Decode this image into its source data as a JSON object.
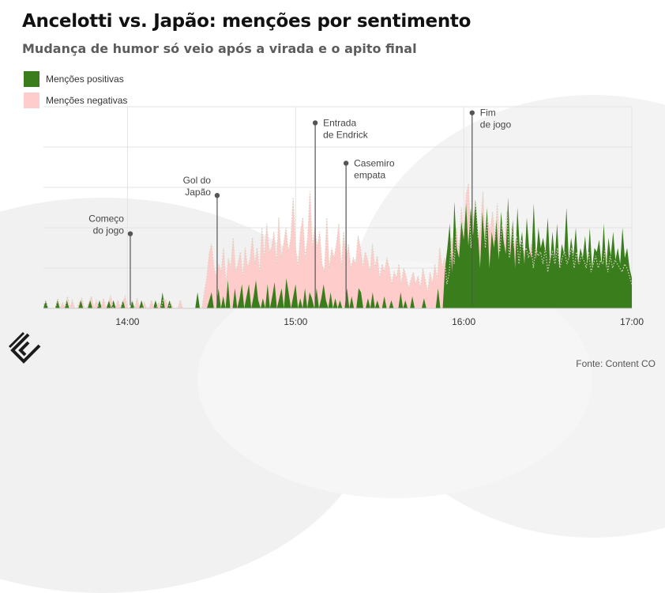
{
  "header": {
    "title": "Ancelotti vs. Japão: menções por sentimento",
    "subtitle": "Mudança de humor só veio após a virada e o apito final"
  },
  "colors": {
    "positive": "#3a7d1d",
    "negative": "#ffcccc",
    "dotted_line": "#d9d2c0",
    "grid": "#e3e3e3",
    "annotation": "#555555"
  },
  "source": "Fonte: Content CO",
  "logo_icon": "content-co-logo-icon",
  "chart_data": {
    "type": "area",
    "x_unit": "time",
    "x_start": "13:30",
    "x_end": "17:00",
    "x_ticks": [
      "14:00",
      "15:00",
      "16:00",
      "17:00"
    ],
    "ylim": [
      0,
      100
    ],
    "grid": "horizontal",
    "legend_position": "top-left",
    "series": [
      {
        "name": "Menções positivas",
        "key": "positive",
        "values": [
          0,
          4,
          0,
          0,
          0,
          0,
          4,
          0,
          0,
          0,
          4,
          0,
          0,
          0,
          0,
          0,
          4,
          0,
          0,
          0,
          4,
          0,
          0,
          0,
          4,
          0,
          0,
          0,
          4,
          0,
          4,
          0,
          0,
          0,
          4,
          0,
          0,
          0,
          4,
          0,
          0,
          0,
          4,
          0,
          0,
          0,
          0,
          0,
          4,
          0,
          0,
          8,
          0,
          0,
          4,
          0,
          0,
          0,
          0,
          0,
          0,
          0,
          0,
          0,
          0,
          0,
          8,
          0,
          0,
          0,
          0,
          4,
          8,
          0,
          0,
          10,
          0,
          6,
          0,
          14,
          0,
          0,
          10,
          0,
          5,
          12,
          0,
          6,
          12,
          0,
          6,
          14,
          4,
          0,
          5,
          0,
          12,
          0,
          6,
          13,
          0,
          5,
          10,
          0,
          15,
          8,
          0,
          6,
          12,
          0,
          5,
          0,
          10,
          0,
          8,
          5,
          0,
          10,
          0,
          5,
          12,
          4,
          0,
          8,
          0,
          5,
          0,
          4,
          0,
          0,
          10,
          0,
          6,
          0,
          0,
          10,
          8,
          0,
          0,
          5,
          0,
          8,
          0,
          4,
          0,
          0,
          6,
          0,
          0,
          4,
          0,
          0,
          0,
          8,
          0,
          4,
          0,
          0,
          6,
          0,
          0,
          0,
          0,
          5,
          0,
          0,
          0,
          0,
          0,
          10,
          0,
          0,
          20,
          30,
          42,
          18,
          53,
          30,
          25,
          43,
          34,
          52,
          31,
          50,
          36,
          54,
          40,
          20,
          48,
          33,
          50,
          20,
          38,
          30,
          44,
          24,
          48,
          34,
          27,
          55,
          26,
          44,
          20,
          50,
          30,
          38,
          22,
          45,
          30,
          25,
          52,
          24,
          40,
          30,
          35,
          28,
          45,
          22,
          38,
          25,
          42,
          20,
          32,
          27,
          50,
          24,
          35,
          26,
          40,
          22,
          30,
          25,
          36,
          22,
          40,
          20,
          30,
          28,
          34,
          22,
          42,
          20,
          35,
          26,
          38,
          24,
          30,
          22,
          40,
          25,
          30,
          20,
          15
        ]
      },
      {
        "name": "Menções negativas",
        "key": "negative",
        "values": [
          2,
          3,
          0,
          0,
          0,
          0,
          5,
          0,
          3,
          0,
          6,
          0,
          4,
          0,
          0,
          3,
          5,
          0,
          0,
          3,
          6,
          0,
          4,
          0,
          0,
          5,
          0,
          3,
          6,
          0,
          0,
          4,
          0,
          3,
          6,
          0,
          0,
          4,
          0,
          5,
          0,
          0,
          3,
          0,
          0,
          4,
          0,
          0,
          3,
          0,
          5,
          4,
          0,
          3,
          0,
          0,
          0,
          4,
          0,
          0,
          0,
          0,
          0,
          0,
          0,
          0,
          0,
          8,
          15,
          27,
          32,
          20,
          16,
          22,
          18,
          30,
          12,
          25,
          20,
          35,
          18,
          22,
          28,
          15,
          30,
          20,
          24,
          35,
          22,
          30,
          18,
          40,
          25,
          42,
          28,
          30,
          38,
          22,
          45,
          25,
          32,
          40,
          28,
          35,
          55,
          30,
          20,
          38,
          45,
          25,
          35,
          58,
          30,
          40,
          30,
          38,
          22,
          18,
          45,
          20,
          30,
          25,
          32,
          42,
          20,
          38,
          24,
          32,
          20,
          25,
          22,
          36,
          30,
          20,
          28,
          24,
          18,
          32,
          20,
          26,
          15,
          22,
          18,
          25,
          20,
          12,
          18,
          15,
          22,
          12,
          20,
          16,
          10,
          14,
          18,
          12,
          16,
          10,
          20,
          14,
          8,
          18,
          12,
          22,
          14,
          30,
          20,
          25,
          12,
          18,
          35,
          22,
          40,
          28,
          50,
          36,
          56,
          62,
          30,
          45,
          52,
          35,
          40,
          58,
          30,
          44,
          38,
          48,
          34,
          52,
          28,
          42,
          32,
          48,
          25,
          40,
          30,
          36,
          22,
          34,
          28,
          30,
          25,
          32,
          20,
          30,
          26,
          28,
          22,
          30,
          18,
          25,
          28,
          22,
          30,
          20,
          25,
          28,
          22,
          26,
          30,
          20,
          28,
          22,
          26,
          24,
          20,
          28,
          18,
          22,
          26,
          20,
          24,
          22,
          30,
          18,
          26,
          20,
          24,
          22,
          20,
          18,
          22,
          20,
          16,
          12
        ]
      }
    ],
    "annotations": [
      {
        "label_lines": [
          "Começo",
          "do jogo"
        ],
        "x": "14:01",
        "y": 37
      },
      {
        "label_lines": [
          "Gol do",
          "Japão"
        ],
        "x": "14:32",
        "y": 56
      },
      {
        "label_lines": [
          "Entrada",
          "de Endrick"
        ],
        "x": "15:07",
        "y": 92
      },
      {
        "label_lines": [
          "Casemiro",
          "empata"
        ],
        "x": "15:18",
        "y": 72
      },
      {
        "label_lines": [
          "Fim",
          "de jogo"
        ],
        "x": "16:03",
        "y": 97
      }
    ]
  }
}
